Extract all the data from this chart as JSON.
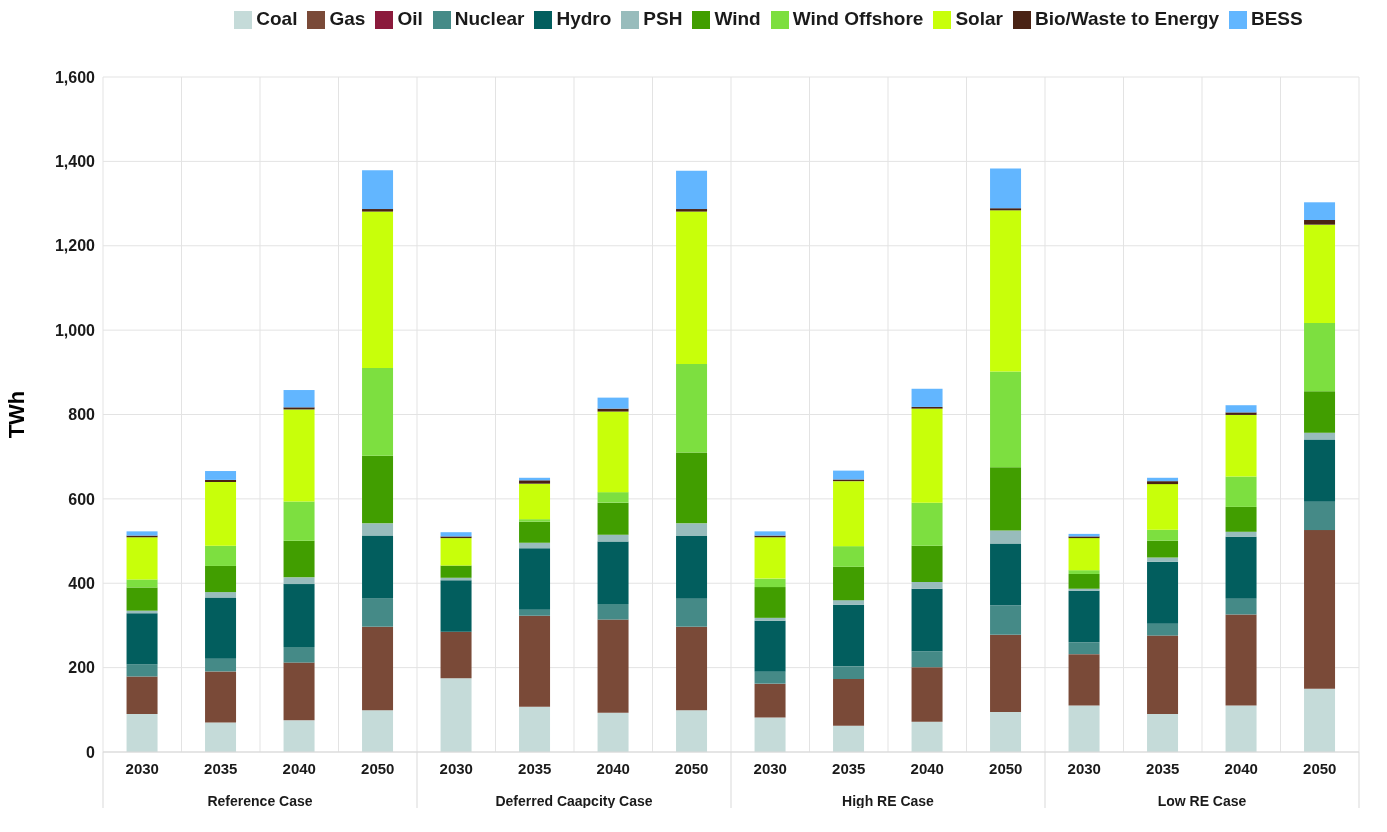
{
  "chart_data": {
    "type": "bar",
    "stacked": true,
    "ylabel": "TWh",
    "categories": [
      "2030",
      "2035",
      "2040",
      "2050",
      "2030",
      "2035",
      "2040",
      "2050",
      "2030",
      "2035",
      "2040",
      "2050",
      "2030",
      "2035",
      "2040",
      "2050"
    ],
    "annotations": [
      "Reference Case",
      "Deferred Caapcity Case",
      "High RE Case",
      "Low RE Case"
    ],
    "ylim": [
      0,
      1600
    ],
    "yticks": [
      0,
      200,
      400,
      600,
      800,
      {
        "value": 1000,
        "label": "1,000"
      },
      {
        "value": 1200,
        "label": "1,200"
      },
      {
        "value": 1400,
        "label": "1,400"
      },
      {
        "value": 1600,
        "label": "1,600"
      }
    ],
    "grid": true,
    "legend": "top",
    "series": [
      {
        "name": "Coal",
        "color": "#c5dbd9",
        "values": [
          90,
          70,
          75,
          99,
          175,
          107,
          93,
          99,
          82,
          62,
          72,
          95,
          110,
          90,
          110,
          150
        ]
      },
      {
        "name": "Gas",
        "color": "#7a4a38",
        "values": [
          89,
          121,
          137,
          198,
          110,
          216,
          221,
          198,
          80,
          111,
          129,
          183,
          122,
          186,
          216,
          376
        ]
      },
      {
        "name": "Oil",
        "color": "#8b1a3c",
        "values": [
          0,
          0,
          0,
          0,
          0,
          0,
          0,
          0,
          0,
          0,
          0,
          0,
          0,
          0,
          0,
          0
        ]
      },
      {
        "name": "Nuclear",
        "color": "#458a87",
        "values": [
          29,
          30,
          37,
          67,
          0,
          14,
          37,
          66,
          28,
          30,
          37,
          69,
          28,
          28,
          37,
          67
        ]
      },
      {
        "name": "Hydro",
        "color": "#025e5e",
        "values": [
          121,
          145,
          149,
          149,
          122,
          146,
          148,
          149,
          121,
          146,
          149,
          147,
          122,
          147,
          147,
          148
        ]
      },
      {
        "name": "PSH",
        "color": "#98bcbc",
        "values": [
          6,
          13,
          16,
          29,
          6,
          13,
          16,
          30,
          7,
          11,
          16,
          31,
          5,
          10,
          12,
          16
        ]
      },
      {
        "name": "Wind",
        "color": "#419e00",
        "values": [
          55,
          62,
          87,
          160,
          29,
          50,
          76,
          168,
          73,
          79,
          86,
          150,
          35,
          40,
          59,
          98
        ]
      },
      {
        "name": "Wind Offshore",
        "color": "#7ddf40",
        "values": [
          19,
          48,
          93,
          208,
          0,
          6,
          25,
          210,
          20,
          49,
          102,
          227,
          9,
          26,
          72,
          162
        ]
      },
      {
        "name": "Solar",
        "color": "#c8ff0a",
        "values": [
          100,
          151,
          218,
          371,
          65,
          84,
          191,
          361,
          98,
          154,
          223,
          382,
          76,
          108,
          146,
          233
        ]
      },
      {
        "name": "Bio/Waste to Energy",
        "color": "#4a2315",
        "values": [
          4,
          5,
          5,
          6,
          4,
          8,
          7,
          6,
          4,
          4,
          4,
          5,
          4,
          7,
          6,
          11
        ]
      },
      {
        "name": "BESS",
        "color": "#62b6ff",
        "values": [
          10,
          21,
          41,
          92,
          10,
          6,
          26,
          91,
          10,
          21,
          43,
          94,
          6,
          8,
          17,
          42
        ]
      }
    ]
  }
}
